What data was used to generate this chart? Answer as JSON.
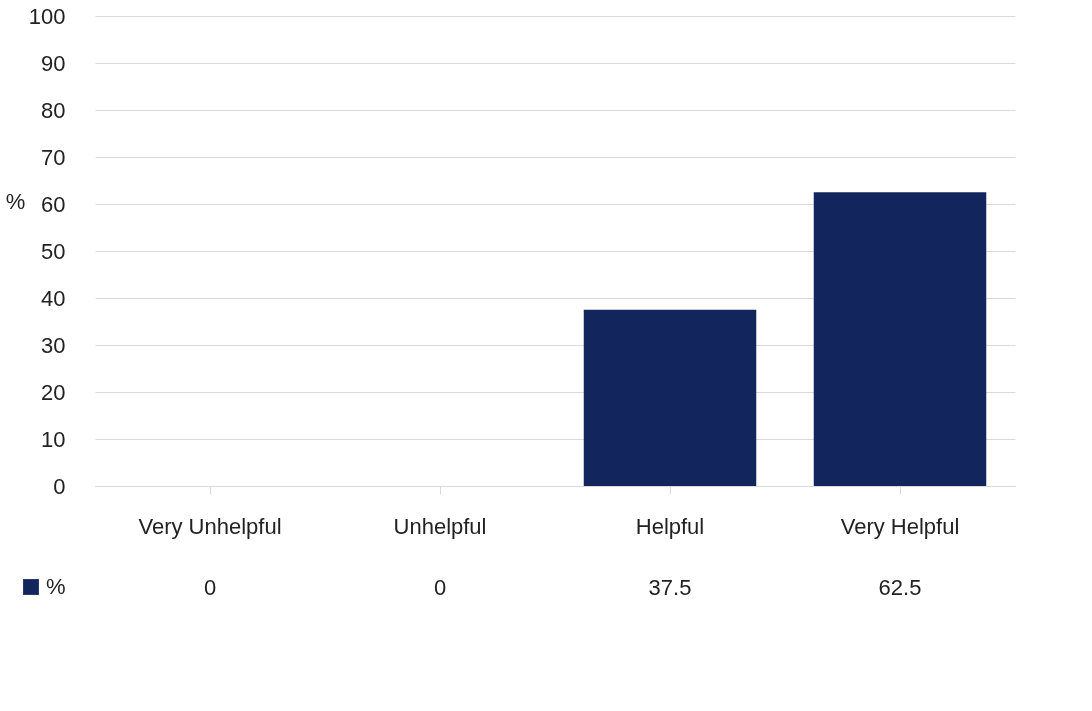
{
  "chart_data": {
    "type": "bar",
    "ylabel": "%",
    "categories": [
      "Very Unhelpful",
      "Unhelpful",
      "Helpful",
      "Very Helpful"
    ],
    "series": [
      {
        "name": "%",
        "color": "#12255d",
        "values": [
          0,
          0,
          37.5,
          62.5
        ]
      }
    ],
    "ylim": [
      0,
      100
    ],
    "yticks": [
      0,
      10,
      20,
      30,
      40,
      50,
      60,
      70,
      80,
      90,
      100
    ],
    "grid": "y",
    "legend": "bottom",
    "data_labels": true
  }
}
